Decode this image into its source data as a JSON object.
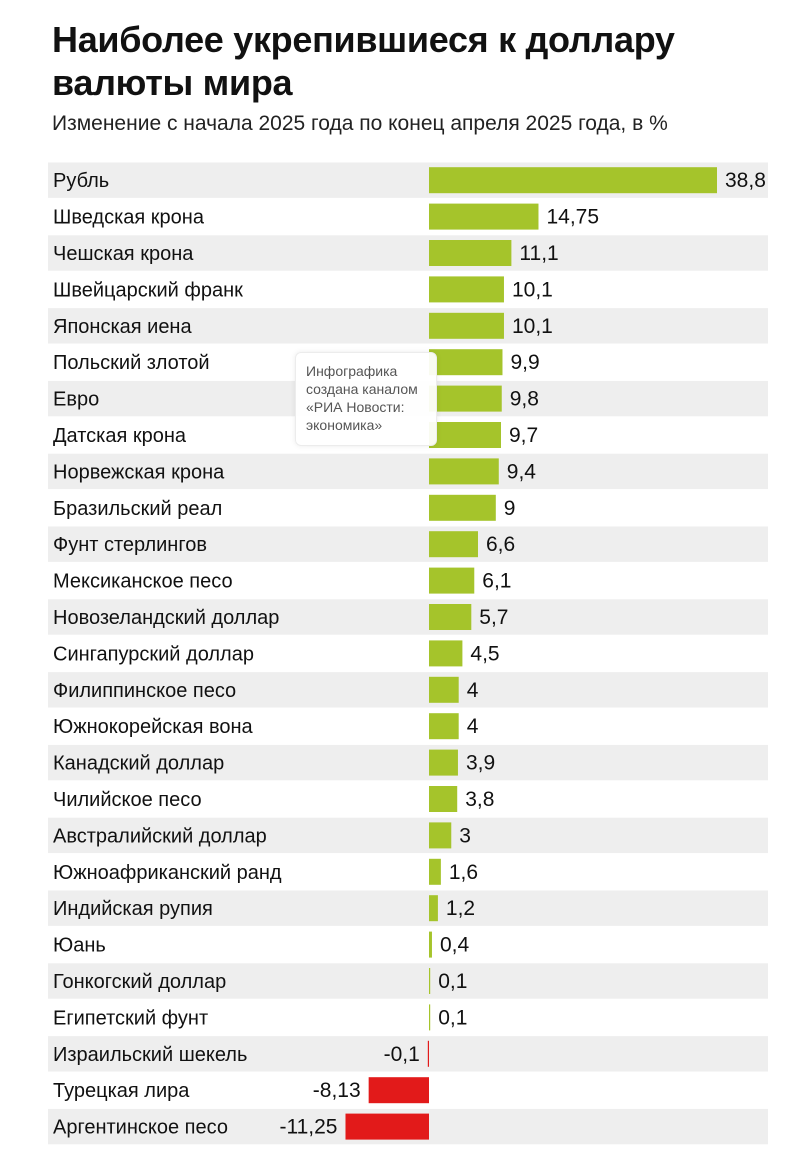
{
  "chart_data": {
    "type": "bar",
    "orientation": "horizontal",
    "title": "Наиболее укрепившиеся к доллару валюты мира",
    "subtitle": "Изменение с начала 2025 года по конец апреля 2025 года, в %",
    "categories": [
      "Рубль",
      "Шведская крона",
      "Чешская крона",
      "Швейцарский франк",
      "Японская иена",
      "Польский злотой",
      "Евро",
      "Датская крона",
      "Норвежская крона",
      "Бразильский реал",
      "Фунт стерлингов",
      "Мексиканское песо",
      "Новозеландский доллар",
      "Сингапурский доллар",
      "Филиппинское песо",
      "Южнокорейская вона",
      "Канадский доллар",
      "Чилийское песо",
      "Австралийский доллар",
      "Южноафриканский ранд",
      "Индийская рупия",
      "Юань",
      "Гонкогский доллар",
      "Египетский фунт",
      "Израильский шекель",
      "Турецкая лира",
      "Аргентинское песо"
    ],
    "values": [
      38.8,
      14.75,
      11.1,
      10.1,
      10.1,
      9.9,
      9.8,
      9.7,
      9.4,
      9,
      6.6,
      6.1,
      5.7,
      4.5,
      4,
      4,
      3.9,
      3.8,
      3,
      1.6,
      1.2,
      0.4,
      0.1,
      0.1,
      -0.1,
      -8.13,
      -11.25
    ],
    "value_labels": [
      "38,8",
      "14,75",
      "11,1",
      "10,1",
      "10,1",
      "9,9",
      "9,8",
      "9,7",
      "9,4",
      "9",
      "6,6",
      "6,1",
      "5,7",
      "4,5",
      "4",
      "4",
      "3,9",
      "3,8",
      "3",
      "1,6",
      "1,2",
      "0,4",
      "0,1",
      "0,1",
      "-0,1",
      "-8,13",
      "-11,25"
    ],
    "xlim": [
      -11.25,
      38.8
    ],
    "grid": false,
    "legend": "none",
    "colors": {
      "positive": "#a5c42b",
      "negative": "#e21a1a",
      "row_stripe": "#eeeeee"
    }
  },
  "watermark": {
    "lines": [
      "Инфографика",
      "создана каналом",
      "«РИА Новости:",
      "экономика»"
    ]
  }
}
